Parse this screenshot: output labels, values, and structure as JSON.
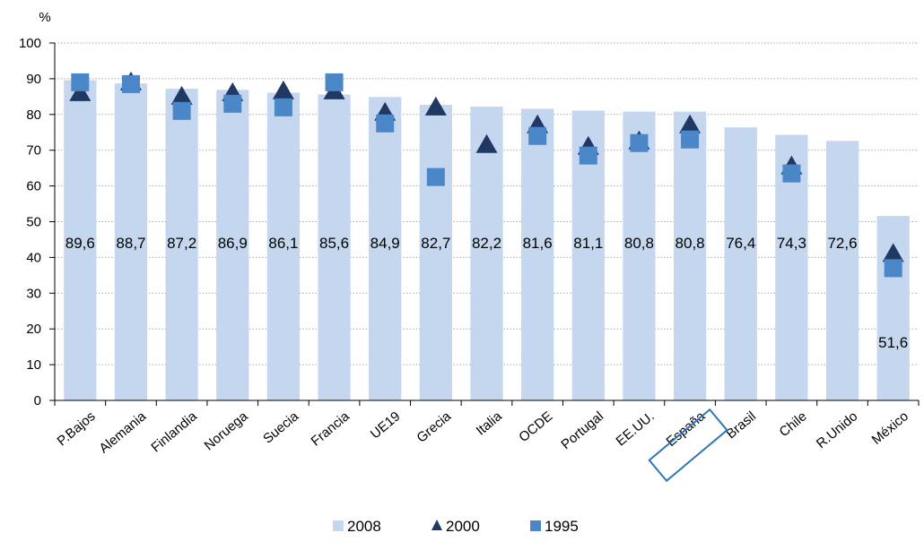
{
  "chart_data": {
    "type": "bar",
    "y_unit": "%",
    "ylim": [
      0,
      100
    ],
    "yticks": [
      0,
      10,
      20,
      30,
      40,
      50,
      60,
      70,
      80,
      90,
      100
    ],
    "grid": true,
    "legend_position": "bottom",
    "highlighted_category": "España",
    "categories": [
      "P.Bajos",
      "Alemania",
      "Finlandia",
      "Noruega",
      "Suecia",
      "Francia",
      "UE19",
      "Grecia",
      "Italia",
      "OCDE",
      "Portugal",
      "EE.UU.",
      "España",
      "Brasil",
      "Chile",
      "R.Unido",
      "México"
    ],
    "value_labels": [
      "89,6",
      "88,7",
      "87,2",
      "86,9",
      "86,1",
      "85,6",
      "84,9",
      "82,7",
      "82,2",
      "81,6",
      "81,1",
      "80,8",
      "80,8",
      "76,4",
      "74,3",
      "72,6",
      "51,6"
    ],
    "series": [
      {
        "name": "2008",
        "mark": "bar",
        "color": "#c5d7ef",
        "values": [
          89.6,
          88.7,
          87.2,
          86.9,
          86.1,
          85.6,
          84.9,
          82.7,
          82.2,
          81.6,
          81.1,
          80.8,
          80.8,
          76.4,
          74.3,
          72.6,
          51.6
        ]
      },
      {
        "name": "2000",
        "mark": "triangle",
        "color": "#1f3864",
        "values": [
          86,
          89,
          85,
          86,
          86.5,
          86.5,
          80.5,
          82,
          71.5,
          77,
          71,
          72.5,
          77,
          null,
          65.5,
          null,
          41
        ]
      },
      {
        "name": "1995",
        "mark": "square",
        "color": "#4a86c8",
        "values": [
          89,
          88.5,
          81,
          83,
          82,
          89,
          77.5,
          62.5,
          null,
          74,
          68.5,
          72,
          73,
          null,
          63.5,
          null,
          37
        ]
      }
    ]
  }
}
